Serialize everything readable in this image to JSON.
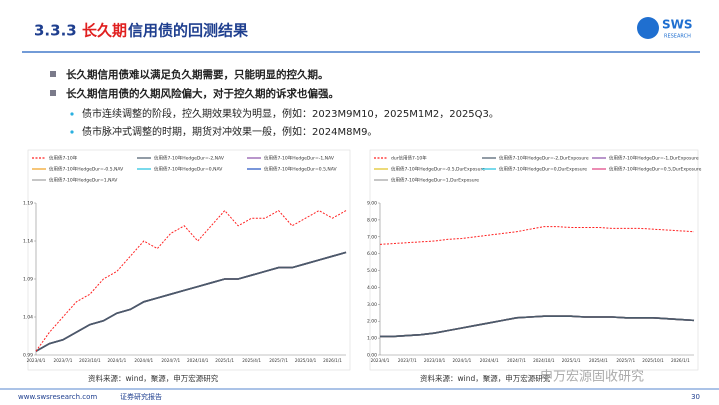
{
  "header": {
    "section": "3.3.3",
    "title_red": "长久期",
    "title": "信用债的回测结果",
    "logo": "SWS",
    "logo_sub": "RESEARCH"
  },
  "bullets": [
    "长久期信用债难以满足负久期需要，只能明显的控久期。",
    "长久期信用债的久期风险偏大，对于控久期的诉求也偏强。"
  ],
  "sub_bullets": [
    "债市连续调整的阶段，控久期效果较为明显，例如：2023M9M10，2025M1M2，2025Q3。",
    "债市脉冲式调整的时期，期货对冲效果一般，例如：2024M8M9。"
  ],
  "chart_data": [
    {
      "type": "line",
      "grid": false,
      "categories": [
        "2023/4/1",
        null,
        "2023/7/1",
        null,
        "2023/10/1",
        null,
        "2024/1/1",
        null,
        "2024/4/1",
        null,
        "2024/7/1",
        null,
        "2024/10/1",
        null,
        "2025/1/1",
        null,
        "2025/4/1",
        null,
        "2025/7/1",
        null,
        "2025/10/1",
        null,
        "2026/1/1",
        null
      ],
      "ylim": [
        0.99,
        1.19
      ],
      "yticks": [
        0.99,
        1.04,
        1.09,
        1.14,
        1.19
      ],
      "series": [
        {
          "name": "信用债7-10年",
          "color": "#ff2020",
          "dashed": true,
          "values": [
            0.995,
            1.02,
            1.04,
            1.06,
            1.07,
            1.09,
            1.1,
            1.12,
            1.14,
            1.13,
            1.15,
            1.16,
            1.14,
            1.16,
            1.18,
            1.16,
            1.17,
            1.17,
            1.18,
            1.16,
            1.17,
            1.18,
            1.17,
            1.18
          ]
        },
        {
          "name": "信用债7-10年HedgeDur=-2,NAV",
          "color": "#4a5a6a",
          "values": [
            0.995,
            1.005,
            1.01,
            1.02,
            1.03,
            1.035,
            1.045,
            1.05,
            1.06,
            1.065,
            1.07,
            1.075,
            1.08,
            1.085,
            1.09,
            1.09,
            1.095,
            1.1,
            1.105,
            1.105,
            1.11,
            1.115,
            1.12,
            1.125
          ]
        },
        {
          "name": "信用债7-10年HedgeDur=-1,NAV",
          "color": "#8a4fa8",
          "values": [
            0.995,
            1.005,
            1.01,
            1.02,
            1.03,
            1.035,
            1.045,
            1.05,
            1.06,
            1.065,
            1.07,
            1.075,
            1.08,
            1.085,
            1.09,
            1.09,
            1.095,
            1.1,
            1.105,
            1.105,
            1.11,
            1.115,
            1.12,
            1.125
          ]
        },
        {
          "name": "信用债7-10年HedgeDur=-0.5,NAV",
          "color": "#f0a020",
          "values": [
            0.995,
            1.005,
            1.01,
            1.02,
            1.03,
            1.035,
            1.045,
            1.05,
            1.06,
            1.065,
            1.07,
            1.075,
            1.08,
            1.085,
            1.09,
            1.09,
            1.095,
            1.1,
            1.105,
            1.105,
            1.11,
            1.115,
            1.12,
            1.125
          ]
        },
        {
          "name": "信用债7-10年HedgeDur=0,NAV",
          "color": "#20c0e0",
          "values": [
            0.995,
            1.005,
            1.01,
            1.02,
            1.03,
            1.035,
            1.045,
            1.05,
            1.06,
            1.065,
            1.07,
            1.075,
            1.08,
            1.085,
            1.09,
            1.09,
            1.095,
            1.1,
            1.105,
            1.105,
            1.11,
            1.115,
            1.12,
            1.125
          ]
        },
        {
          "name": "信用债7-10年HedgeDur=0.5,NAV",
          "color": "#2050c0",
          "values": [
            0.995,
            1.005,
            1.01,
            1.02,
            1.03,
            1.035,
            1.045,
            1.05,
            1.06,
            1.065,
            1.07,
            1.075,
            1.08,
            1.085,
            1.09,
            1.09,
            1.095,
            1.1,
            1.105,
            1.105,
            1.11,
            1.115,
            1.12,
            1.125
          ]
        },
        {
          "name": "信用债7-10年HedgeDur=1,NAV",
          "color": "#a0a0a0",
          "values": [
            0.995,
            1.005,
            1.01,
            1.02,
            1.03,
            1.035,
            1.045,
            1.05,
            1.06,
            1.065,
            1.07,
            1.075,
            1.08,
            1.085,
            1.09,
            1.09,
            1.095,
            1.1,
            1.105,
            1.105,
            1.11,
            1.115,
            1.12,
            1.125
          ]
        }
      ]
    },
    {
      "type": "line",
      "grid": false,
      "categories": [
        "2023/4/1",
        null,
        "2023/7/1",
        null,
        "2023/10/1",
        null,
        "2024/1/1",
        null,
        "2024/4/1",
        null,
        "2024/7/1",
        null,
        "2024/10/1",
        null,
        "2025/1/1",
        null,
        "2025/4/1",
        null,
        "2025/7/1",
        null,
        "2025/10/1",
        null,
        "2026/1/1",
        null
      ],
      "ylim": [
        0,
        9
      ],
      "yticks": [
        {
          "value": 0,
          "label": "0.00"
        },
        {
          "value": 1,
          "label": "1.00"
        },
        {
          "value": 2,
          "label": "2.00"
        },
        {
          "value": 3,
          "label": "3.00"
        },
        {
          "value": 4,
          "label": "4.00"
        },
        {
          "value": 5,
          "label": "5.00"
        },
        {
          "value": 6,
          "label": "6.00"
        },
        {
          "value": 7,
          "label": "7.00"
        },
        {
          "value": 8,
          "label": "8.00"
        },
        {
          "value": 9,
          "label": "9.00"
        }
      ],
      "series": [
        {
          "name": "dur信用债7-10年",
          "color": "#ff2020",
          "dashed": true,
          "values": [
            6.55,
            6.6,
            6.65,
            6.7,
            6.75,
            6.85,
            6.9,
            7.0,
            7.1,
            7.2,
            7.3,
            7.45,
            7.6,
            7.6,
            7.55,
            7.55,
            7.55,
            7.5,
            7.5,
            7.5,
            7.45,
            7.4,
            7.35,
            7.3
          ]
        },
        {
          "name": "信用债7-10年HedgeDur=-2,DurExposure",
          "color": "#4a5a6a",
          "values": [
            1.1,
            1.1,
            1.15,
            1.2,
            1.3,
            1.45,
            1.6,
            1.75,
            1.9,
            2.05,
            2.2,
            2.25,
            2.3,
            2.3,
            2.3,
            2.25,
            2.25,
            2.25,
            2.2,
            2.2,
            2.2,
            2.15,
            2.1,
            2.05
          ]
        },
        {
          "name": "信用债7-10年HedgeDur=-1,DurExposure",
          "color": "#8a4fa8",
          "values": [
            1.1,
            1.1,
            1.15,
            1.2,
            1.3,
            1.45,
            1.6,
            1.75,
            1.9,
            2.05,
            2.2,
            2.25,
            2.3,
            2.3,
            2.3,
            2.25,
            2.25,
            2.25,
            2.2,
            2.2,
            2.2,
            2.15,
            2.1,
            2.05
          ]
        },
        {
          "name": "信用债7-10年HedgeDur=-0.5,DurExposure",
          "color": "#e0c020",
          "values": [
            1.1,
            1.1,
            1.15,
            1.2,
            1.3,
            1.45,
            1.6,
            1.75,
            1.9,
            2.05,
            2.2,
            2.25,
            2.3,
            2.3,
            2.3,
            2.25,
            2.25,
            2.25,
            2.2,
            2.2,
            2.2,
            2.15,
            2.1,
            2.05
          ]
        },
        {
          "name": "信用债7-10年HedgeDur=0,DurExposure",
          "color": "#20c0e0",
          "values": [
            1.1,
            1.1,
            1.15,
            1.2,
            1.3,
            1.45,
            1.6,
            1.75,
            1.9,
            2.05,
            2.2,
            2.25,
            2.3,
            2.3,
            2.3,
            2.25,
            2.25,
            2.25,
            2.2,
            2.2,
            2.2,
            2.15,
            2.1,
            2.05
          ]
        },
        {
          "name": "信用债7-10年HedgeDur=0.5,DurExposure",
          "color": "#e04080",
          "values": [
            1.1,
            1.1,
            1.15,
            1.2,
            1.3,
            1.45,
            1.6,
            1.75,
            1.9,
            2.05,
            2.2,
            2.25,
            2.3,
            2.3,
            2.3,
            2.25,
            2.25,
            2.25,
            2.2,
            2.2,
            2.2,
            2.15,
            2.1,
            2.05
          ]
        },
        {
          "name": "信用债7-10年HedgeDur=1,DurExposure",
          "color": "#a0a0a0",
          "values": [
            1.1,
            1.1,
            1.15,
            1.2,
            1.3,
            1.45,
            1.6,
            1.75,
            1.9,
            2.05,
            2.2,
            2.25,
            2.3,
            2.3,
            2.3,
            2.25,
            2.25,
            2.25,
            2.2,
            2.2,
            2.2,
            2.15,
            2.1,
            2.05
          ]
        }
      ]
    }
  ],
  "sources": [
    "资料来源：wind，聚源，申万宏源研究",
    "资料来源：wind，聚源，申万宏源研究"
  ],
  "watermark": "申万宏源固收研究",
  "footer": {
    "site": "www.swsresearch.com",
    "label": "证券研究报告",
    "page": "30"
  }
}
